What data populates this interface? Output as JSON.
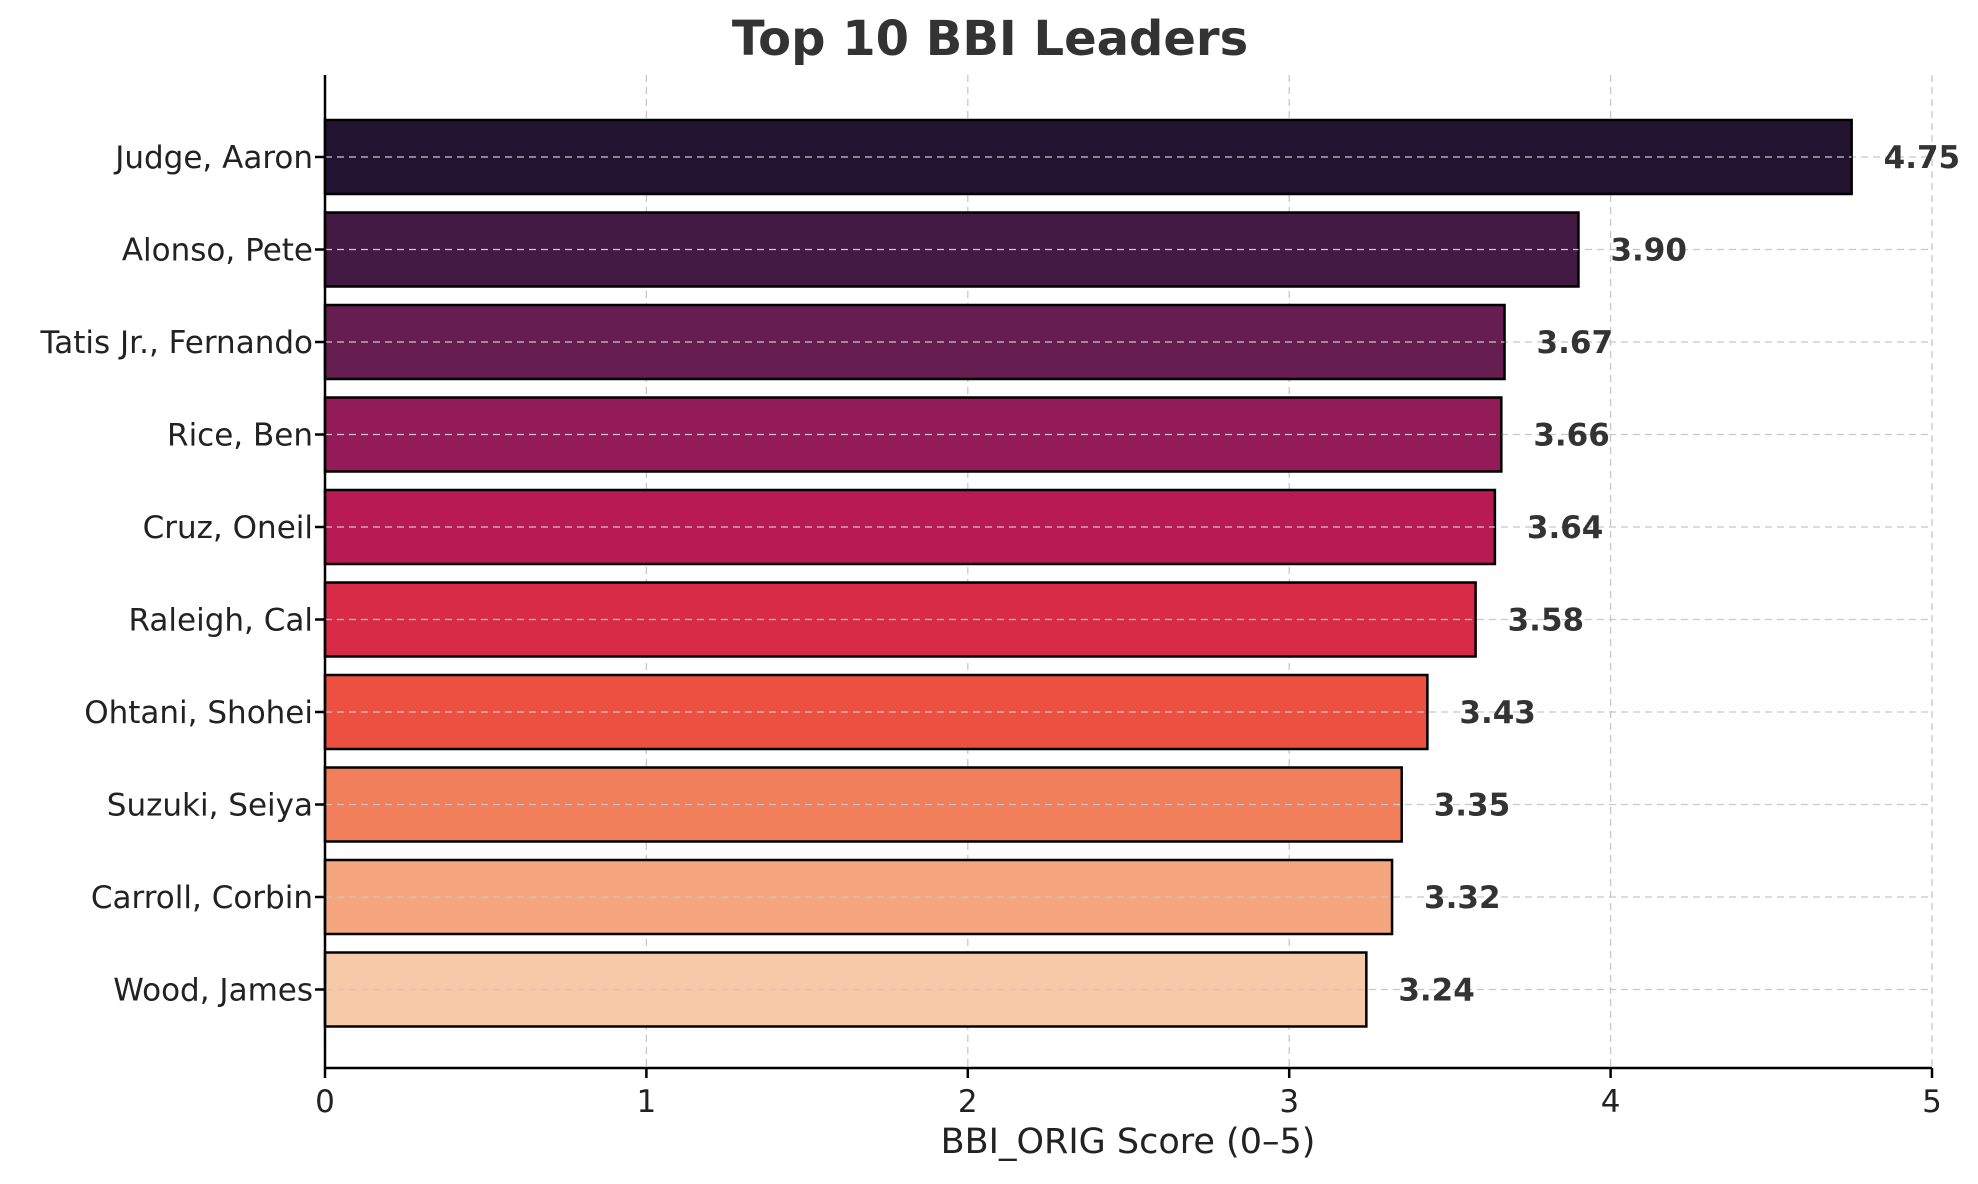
{
  "chart_data": {
    "type": "bar",
    "orientation": "horizontal",
    "title": "Top 10 BBI Leaders",
    "xlabel": "BBI_ORIG Score (0–5)",
    "ylabel": "",
    "xlim": [
      0,
      5
    ],
    "x_ticks": [
      "0",
      "1",
      "2",
      "3",
      "4",
      "5"
    ],
    "grid": true,
    "categories": [
      "Judge, Aaron",
      "Alonso, Pete",
      "Tatis Jr., Fernando",
      "Rice, Ben",
      "Cruz, Oneil",
      "Raleigh, Cal",
      "Ohtani, Shohei",
      "Suzuki, Seiya",
      "Carroll, Corbin",
      "Wood, James"
    ],
    "values": [
      4.75,
      3.9,
      3.67,
      3.66,
      3.64,
      3.58,
      3.43,
      3.35,
      3.32,
      3.24
    ],
    "value_labels": [
      "4.75",
      "3.90",
      "3.67",
      "3.66",
      "3.64",
      "3.58",
      "3.43",
      "3.35",
      "3.32",
      "3.24"
    ],
    "colors": [
      "#221331",
      "#431a43",
      "#661e51",
      "#921b58",
      "#b81a53",
      "#d72b47",
      "#ec5041",
      "#f27f5b",
      "#f5a67f",
      "#f6c9a9"
    ]
  }
}
